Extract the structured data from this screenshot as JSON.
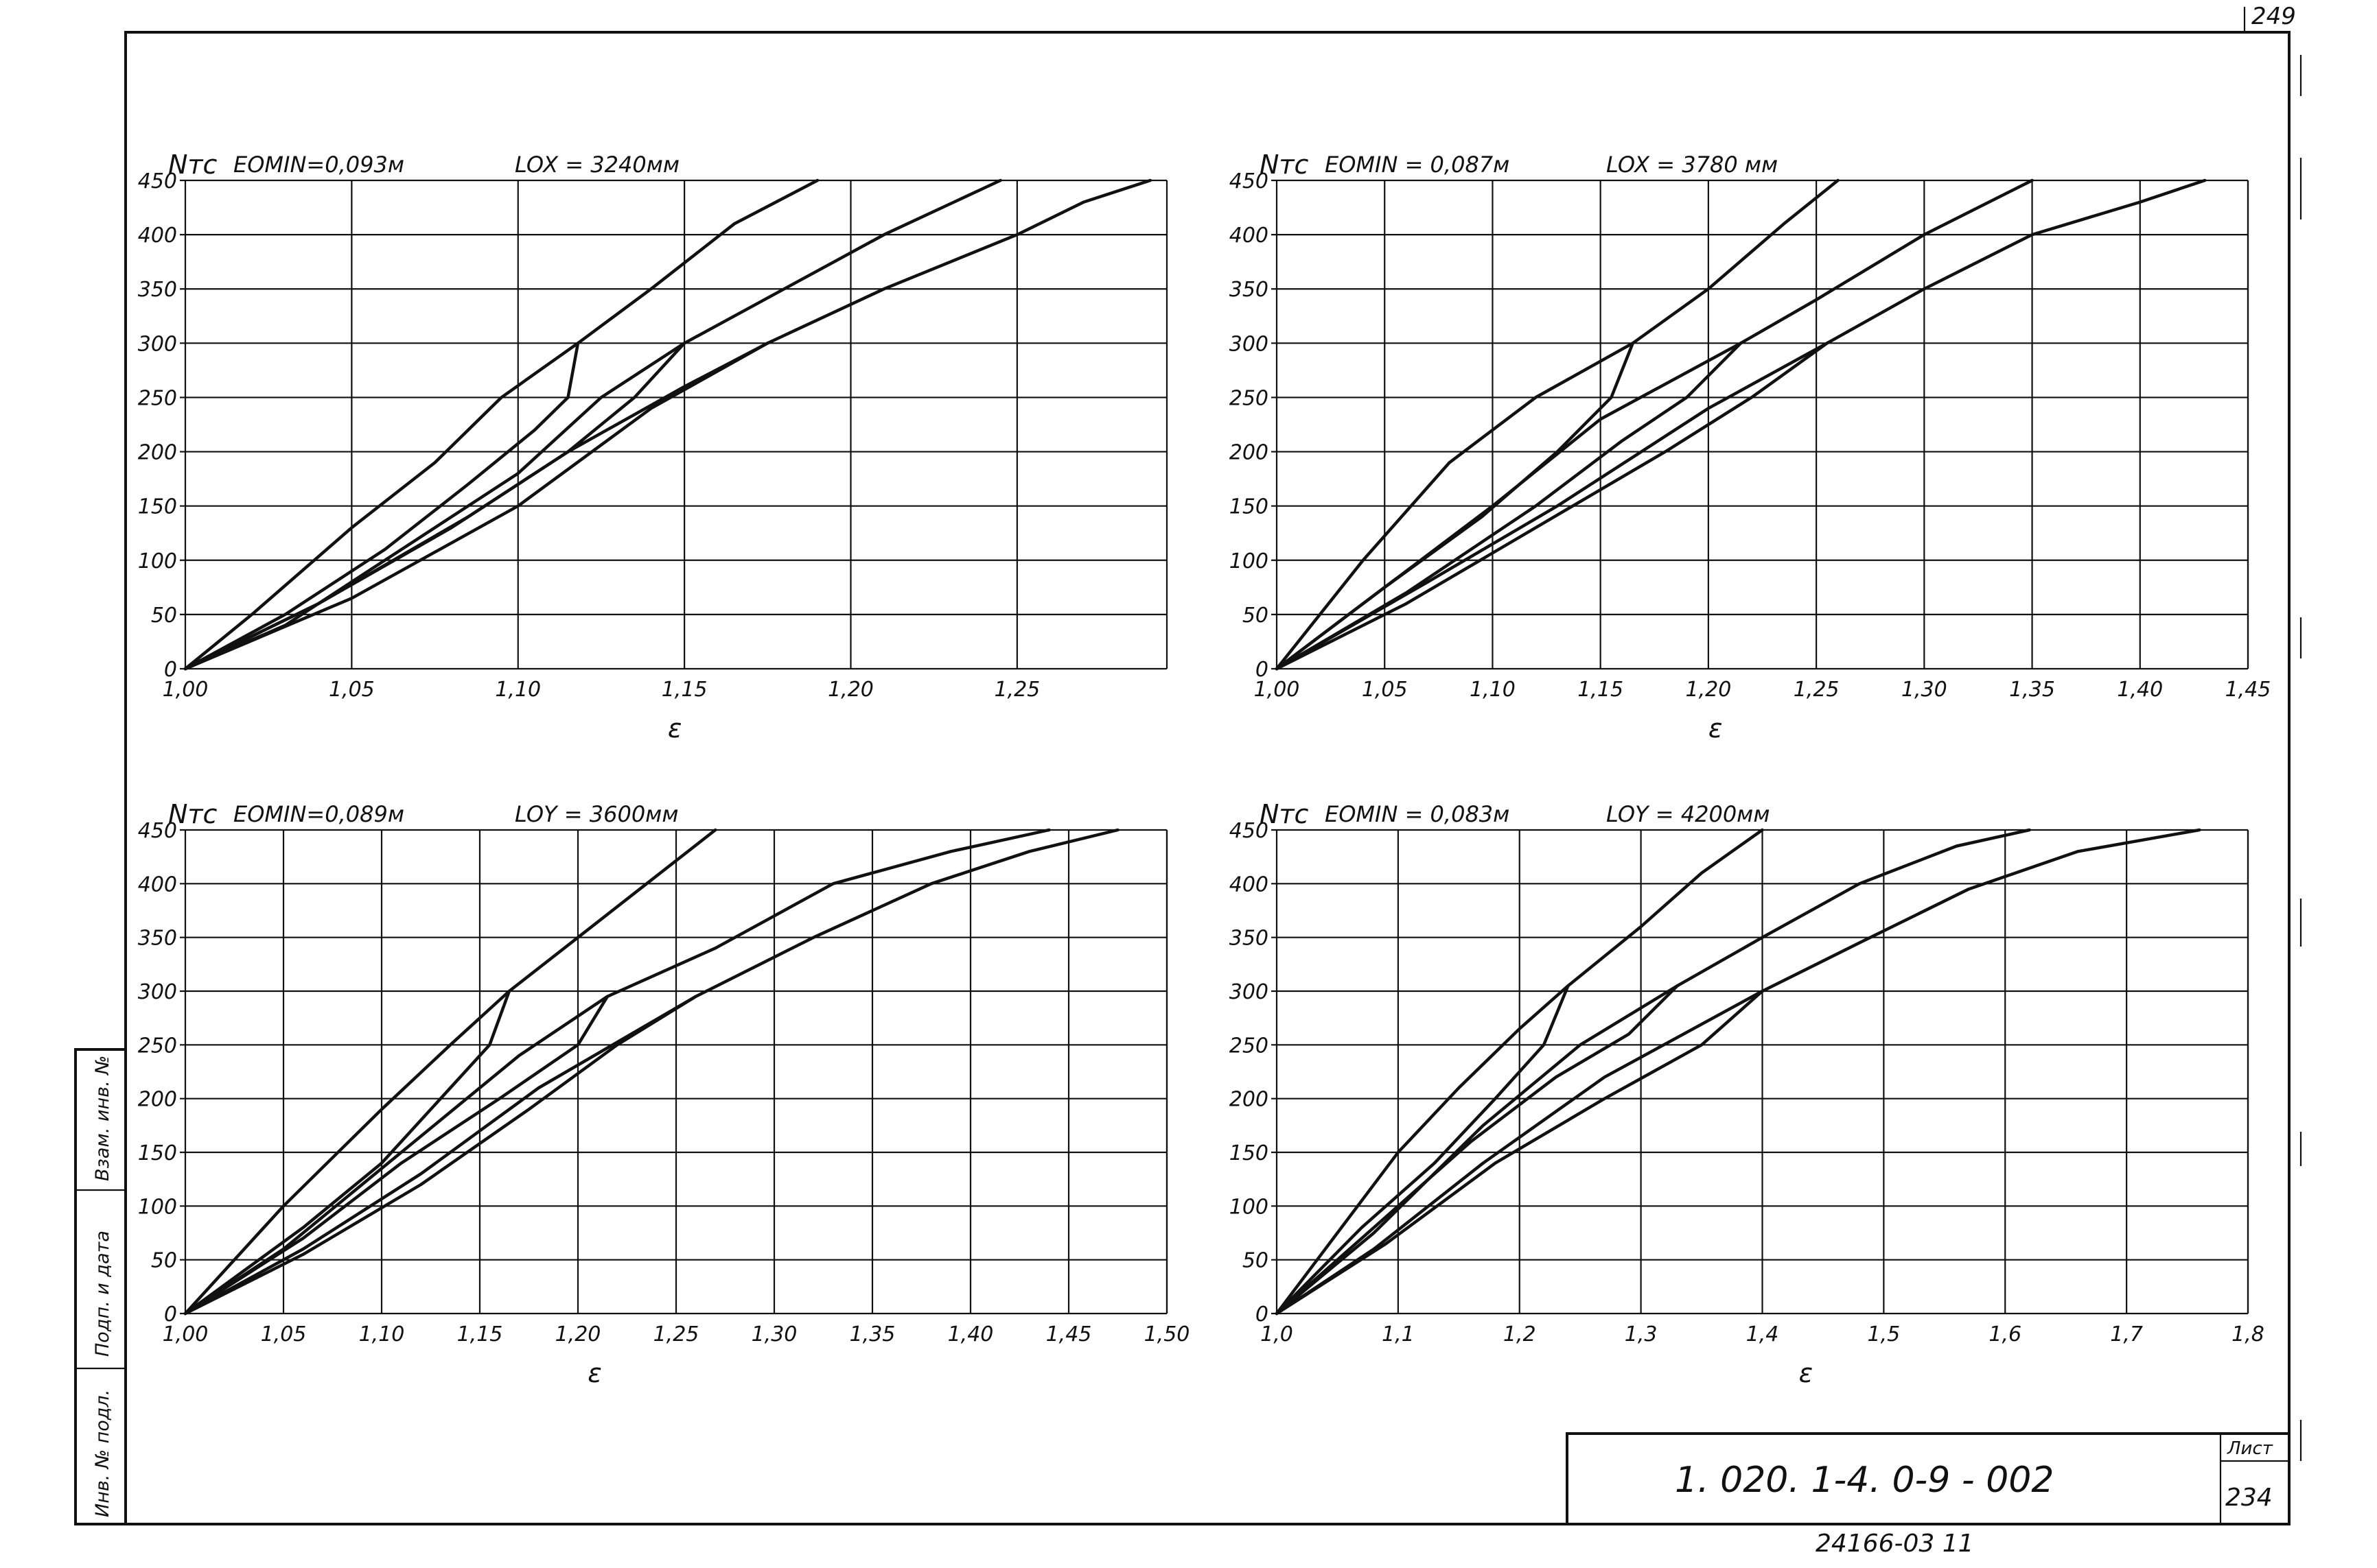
{
  "page": {
    "corner_number": "249",
    "sheet_label": "Лист",
    "sheet_number": "234",
    "document_code": "1. 020. 1-4.   0-9 - 002",
    "bottom_number": "24166-03    11",
    "side_labels": [
      "Взам. инв. №",
      "Подп. и дата",
      "Инв. № подл."
    ]
  },
  "chart_data": [
    {
      "type": "line",
      "ylabel": "Nтс",
      "xlabel": "ε",
      "param_e": "EOMIN=0,093м",
      "param_l": "LOX = 3240мм",
      "xlim": [
        1.0,
        1.295
      ],
      "ylim": [
        0,
        450
      ],
      "x_ticks": [
        "1,00",
        "1,05",
        "1,10",
        "1,15",
        "1,20",
        "1,25"
      ],
      "x_tick_values": [
        1.0,
        1.05,
        1.1,
        1.15,
        1.2,
        1.25
      ],
      "y_ticks": [
        0,
        50,
        100,
        150,
        200,
        250,
        300,
        350,
        400,
        450
      ],
      "series": [
        {
          "x": [
            1.0,
            1.02,
            1.05,
            1.075,
            1.095,
            1.118,
            1.14,
            1.165,
            1.19
          ],
          "y": [
            0,
            50,
            130,
            190,
            250,
            300,
            350,
            410,
            450
          ]
        },
        {
          "x": [
            1.0,
            1.03,
            1.06,
            1.085,
            1.105,
            1.115,
            1.118
          ],
          "y": [
            0,
            50,
            110,
            170,
            220,
            250,
            300
          ]
        },
        {
          "x": [
            1.0,
            1.03,
            1.07,
            1.1,
            1.125,
            1.15,
            1.18,
            1.21,
            1.245
          ],
          "y": [
            0,
            40,
            120,
            180,
            250,
            300,
            350,
            400,
            450
          ]
        },
        {
          "x": [
            1.0,
            1.04,
            1.085,
            1.115,
            1.135,
            1.15
          ],
          "y": [
            0,
            60,
            140,
            200,
            250,
            300
          ]
        },
        {
          "x": [
            1.0,
            1.05,
            1.1,
            1.14,
            1.175,
            1.21,
            1.25,
            1.27,
            1.29
          ],
          "y": [
            0,
            65,
            150,
            240,
            300,
            350,
            400,
            430,
            450
          ]
        },
        {
          "x": [
            1.0,
            1.04,
            1.08,
            1.115,
            1.15,
            1.175
          ],
          "y": [
            0,
            60,
            130,
            200,
            260,
            300
          ]
        }
      ]
    },
    {
      "type": "line",
      "ylabel": "Nтс",
      "xlabel": "ε",
      "param_e": "EOMIN = 0,087м",
      "param_l": "LOX = 3780 мм",
      "xlim": [
        1.0,
        1.45
      ],
      "ylim": [
        0,
        450
      ],
      "x_ticks": [
        "1,00",
        "1,05",
        "1,10",
        "1,15",
        "1,20",
        "1,25",
        "1,30",
        "1,35",
        "1,40",
        "1,45"
      ],
      "x_tick_values": [
        1.0,
        1.05,
        1.1,
        1.15,
        1.2,
        1.25,
        1.3,
        1.35,
        1.4,
        1.45
      ],
      "y_ticks": [
        0,
        50,
        100,
        150,
        200,
        250,
        300,
        350,
        400,
        450
      ],
      "series": [
        {
          "x": [
            1.0,
            1.04,
            1.08,
            1.12,
            1.165,
            1.2,
            1.235,
            1.26
          ],
          "y": [
            0,
            100,
            190,
            250,
            300,
            350,
            410,
            450
          ]
        },
        {
          "x": [
            1.0,
            1.05,
            1.095,
            1.13,
            1.155,
            1.165
          ],
          "y": [
            0,
            75,
            140,
            200,
            250,
            300
          ]
        },
        {
          "x": [
            1.0,
            1.05,
            1.1,
            1.15,
            1.215,
            1.25,
            1.3,
            1.35
          ],
          "y": [
            0,
            75,
            150,
            230,
            300,
            340,
            400,
            450
          ]
        },
        {
          "x": [
            1.0,
            1.06,
            1.12,
            1.16,
            1.19,
            1.215
          ],
          "y": [
            0,
            70,
            150,
            210,
            250,
            300
          ]
        },
        {
          "x": [
            1.0,
            1.07,
            1.13,
            1.2,
            1.255,
            1.3,
            1.35,
            1.4,
            1.43
          ],
          "y": [
            0,
            80,
            150,
            240,
            300,
            350,
            400,
            430,
            450
          ]
        },
        {
          "x": [
            1.0,
            1.06,
            1.12,
            1.18,
            1.22,
            1.255
          ],
          "y": [
            0,
            60,
            130,
            200,
            250,
            300
          ]
        }
      ]
    },
    {
      "type": "line",
      "ylabel": "Nтс",
      "xlabel": "ε",
      "param_e": "EOMIN=0,089м",
      "param_l": "LOY = 3600мм",
      "xlim": [
        1.0,
        1.5
      ],
      "ylim": [
        0,
        450
      ],
      "x_ticks": [
        "1,00",
        "1,05",
        "1,10",
        "1,15",
        "1,20",
        "1,25",
        "1,30",
        "1,35",
        "1,40",
        "1,45",
        "1,50"
      ],
      "x_tick_values": [
        1.0,
        1.05,
        1.1,
        1.15,
        1.2,
        1.25,
        1.3,
        1.35,
        1.4,
        1.45,
        1.5
      ],
      "y_ticks": [
        0,
        50,
        100,
        150,
        200,
        250,
        300,
        350,
        400,
        450
      ],
      "series": [
        {
          "x": [
            1.0,
            1.05,
            1.1,
            1.135,
            1.165,
            1.2,
            1.235,
            1.27
          ],
          "y": [
            0,
            100,
            190,
            250,
            300,
            350,
            400,
            450
          ]
        },
        {
          "x": [
            1.0,
            1.06,
            1.1,
            1.13,
            1.155,
            1.165
          ],
          "y": [
            0,
            80,
            140,
            200,
            250,
            300
          ]
        },
        {
          "x": [
            1.0,
            1.05,
            1.11,
            1.17,
            1.215,
            1.27,
            1.33,
            1.39,
            1.44
          ],
          "y": [
            0,
            60,
            150,
            240,
            295,
            340,
            400,
            430,
            450
          ]
        },
        {
          "x": [
            1.0,
            1.06,
            1.11,
            1.16,
            1.2,
            1.215
          ],
          "y": [
            0,
            70,
            140,
            200,
            250,
            295
          ]
        },
        {
          "x": [
            1.0,
            1.06,
            1.12,
            1.18,
            1.26,
            1.32,
            1.38,
            1.43,
            1.475
          ],
          "y": [
            0,
            60,
            130,
            210,
            295,
            350,
            400,
            430,
            450
          ]
        },
        {
          "x": [
            1.0,
            1.06,
            1.12,
            1.175,
            1.22,
            1.26
          ],
          "y": [
            0,
            55,
            120,
            190,
            250,
            295
          ]
        }
      ]
    },
    {
      "type": "line",
      "ylabel": "Nтс",
      "xlabel": "ε",
      "param_e": "EOMIN = 0,083м",
      "param_l": "LOY = 4200мм",
      "xlim": [
        1.0,
        1.8
      ],
      "ylim": [
        0,
        450
      ],
      "x_ticks": [
        "1,0",
        "1,1",
        "1,2",
        "1,3",
        "1,4",
        "1,5",
        "1,6",
        "1,7",
        "1,8"
      ],
      "x_tick_values": [
        1.0,
        1.1,
        1.2,
        1.3,
        1.4,
        1.5,
        1.6,
        1.7,
        1.8
      ],
      "y_ticks": [
        0,
        50,
        100,
        150,
        200,
        250,
        300,
        350,
        400,
        450
      ],
      "series": [
        {
          "x": [
            1.0,
            1.05,
            1.1,
            1.15,
            1.2,
            1.24,
            1.3,
            1.35,
            1.4
          ],
          "y": [
            0,
            75,
            150,
            210,
            265,
            305,
            360,
            410,
            450
          ]
        },
        {
          "x": [
            1.0,
            1.07,
            1.13,
            1.18,
            1.22,
            1.24
          ],
          "y": [
            0,
            80,
            140,
            200,
            250,
            305
          ]
        },
        {
          "x": [
            1.0,
            1.08,
            1.17,
            1.25,
            1.33,
            1.4,
            1.48,
            1.56,
            1.62
          ],
          "y": [
            0,
            75,
            175,
            250,
            305,
            350,
            400,
            435,
            450
          ]
        },
        {
          "x": [
            1.0,
            1.08,
            1.16,
            1.23,
            1.29,
            1.33
          ],
          "y": [
            0,
            80,
            160,
            220,
            260,
            305
          ]
        },
        {
          "x": [
            1.0,
            1.08,
            1.17,
            1.27,
            1.4,
            1.48,
            1.57,
            1.66,
            1.76
          ],
          "y": [
            0,
            60,
            140,
            220,
            300,
            345,
            395,
            430,
            450
          ]
        },
        {
          "x": [
            1.0,
            1.09,
            1.18,
            1.27,
            1.35,
            1.4
          ],
          "y": [
            0,
            65,
            140,
            200,
            250,
            300
          ]
        }
      ]
    }
  ]
}
